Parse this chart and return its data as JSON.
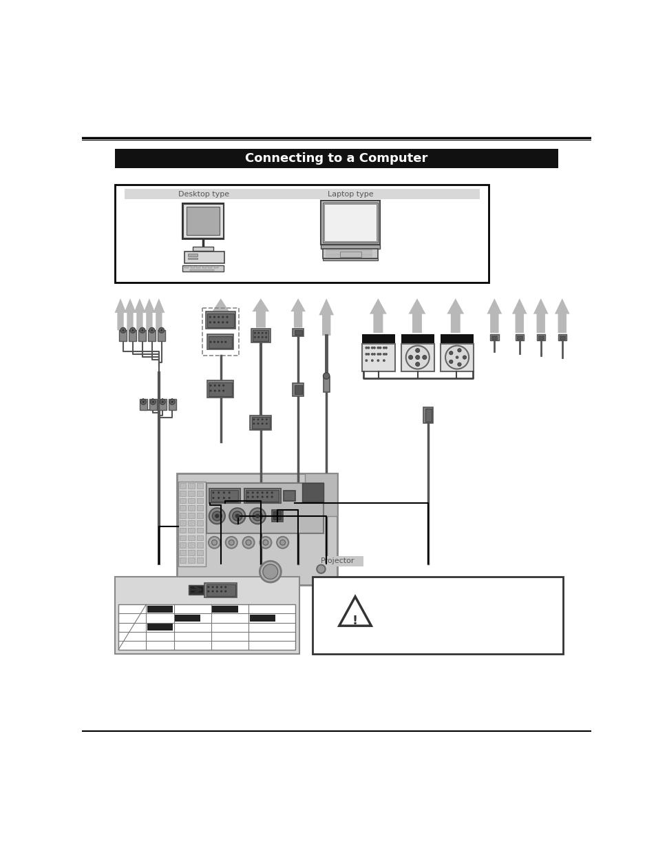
{
  "page_bg": "#ffffff",
  "header_bar_color": "#111111",
  "header_text": "Connecting to a Computer",
  "header_text_color": "#ffffff",
  "header_fontsize": 13,
  "desktop_label": "Desktop type",
  "laptop_label": "Laptop type",
  "projector_label": "Projector",
  "arrow_color": "#b8b8b8",
  "arrow_color_dark": "#909090",
  "cable_color": "#555555",
  "connector_dark": "#444444",
  "connector_mid": "#777777",
  "connector_light": "#aaaaaa",
  "black": "#000000",
  "white": "#ffffff",
  "light_gray": "#e0e0e0",
  "mid_gray": "#b0b0b0",
  "dark_gray": "#555555",
  "box_gray": "#cccccc"
}
